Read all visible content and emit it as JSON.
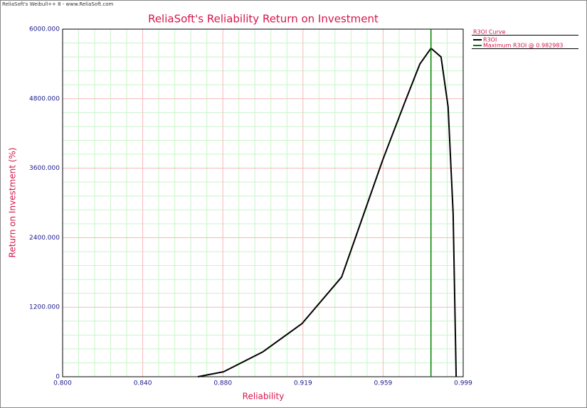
{
  "window_title": "ReliaSoft's Weibull++ 8 - www.ReliaSoft.com",
  "chart_data": {
    "type": "line",
    "title": "ReliaSoft's Reliability Return on Investment",
    "x_label": "Reliability",
    "y_label": "Return on Investment (%)",
    "legend_title": "R3OI Curve",
    "x": [
      0.8672,
      0.88,
      0.8995,
      0.919,
      0.9386,
      0.959,
      0.9698,
      0.9775,
      0.983,
      0.988,
      0.9915,
      0.994,
      0.9955
    ],
    "series": [
      {
        "name": "R3OI",
        "color": "#000000",
        "values": [
          0,
          86,
          430,
          920,
          1720,
          3740,
          4720,
          5400,
          5670,
          5520,
          4660,
          2820,
          0
        ]
      }
    ],
    "vline": {
      "name": "Maximum R3OI @ 0.982983",
      "value": 0.982983,
      "color": "#008000"
    },
    "xlim": [
      0.8,
      0.999
    ],
    "xticks": [
      {
        "value": 0.8,
        "label": "0.800"
      },
      {
        "value": 0.8398,
        "label": "0.840"
      },
      {
        "value": 0.8796,
        "label": "0.880"
      },
      {
        "value": 0.9194,
        "label": "0.919"
      },
      {
        "value": 0.9592,
        "label": "0.959"
      },
      {
        "value": 0.999,
        "label": "0.999"
      }
    ],
    "ylim": [
      0,
      6000
    ],
    "yticks": [
      0,
      {
        "value": 1200,
        "label": "1200.000"
      },
      {
        "value": 2400,
        "label": "2400.000"
      },
      {
        "value": 3600,
        "label": "3600.000"
      },
      {
        "value": 4800,
        "label": "4800.000"
      },
      {
        "value": 6000,
        "label": "6000.000"
      }
    ],
    "grid": true,
    "minor_divisions": 5
  }
}
